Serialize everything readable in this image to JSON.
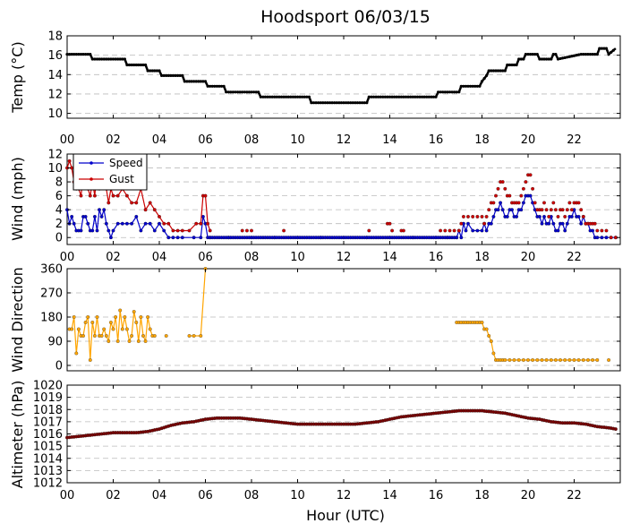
{
  "chart_data": {
    "type": "line",
    "title": "Hoodsport 06/03/15",
    "xlabel": "Hour (UTC)",
    "x_ticks": [
      "00",
      "02",
      "04",
      "06",
      "08",
      "10",
      "12",
      "14",
      "16",
      "18",
      "20",
      "22"
    ],
    "xlim": [
      0,
      24
    ],
    "panels": [
      {
        "id": "temp",
        "ylabel": "Temp ($^\\circ$C)",
        "ylabel_display": "Temp (°C)",
        "ylim": [
          9.5,
          18
        ],
        "yticks": [
          10,
          12,
          14,
          16,
          18
        ],
        "grid": true,
        "series": [
          {
            "color": "#000000",
            "x": [
              0,
              1,
              1.1,
              2.5,
              2.6,
              3.4,
              3.5,
              4,
              4.1,
              5,
              5.1,
              6,
              6.1,
              6.8,
              6.9,
              8.3,
              8.4,
              10.5,
              10.6,
              13,
              13.1,
              16,
              16.1,
              17,
              17.1,
              17.9,
              18,
              18.2,
              18.3,
              19,
              19.1,
              19.5,
              19.6,
              19.8,
              19.9,
              20.4,
              20.5,
              21,
              21.1,
              21.2,
              21.3,
              22.3,
              22.4,
              23,
              23.1,
              23.4,
              23.5,
              23.8
            ],
            "values": [
              16.1,
              16.1,
              15.6,
              15.6,
              15.0,
              15.0,
              14.4,
              14.4,
              13.9,
              13.9,
              13.3,
              13.3,
              12.8,
              12.8,
              12.2,
              12.2,
              11.7,
              11.7,
              11.1,
              11.1,
              11.7,
              11.7,
              12.2,
              12.2,
              12.8,
              12.8,
              13.3,
              13.9,
              14.4,
              14.4,
              15.0,
              15.0,
              15.6,
              15.6,
              16.1,
              16.1,
              15.6,
              15.6,
              16.1,
              16.1,
              15.6,
              16.1,
              16.1,
              16.1,
              16.7,
              16.7,
              16.1,
              16.7
            ]
          }
        ]
      },
      {
        "id": "wind",
        "ylabel": "Wind (mph)",
        "ylim": [
          -1,
          12
        ],
        "yticks": [
          0,
          2,
          4,
          6,
          8,
          10,
          12
        ],
        "grid": true,
        "legend": "top-left",
        "series": [
          {
            "name": "Speed",
            "color": "#0000cc",
            "x": [
              0,
              0.1,
              0.2,
              0.3,
              0.4,
              0.5,
              0.6,
              0.7,
              0.8,
              0.9,
              1.0,
              1.1,
              1.2,
              1.3,
              1.4,
              1.5,
              1.6,
              1.7,
              1.8,
              1.9,
              2.0,
              2.2,
              2.4,
              2.6,
              2.8,
              3.0,
              3.2,
              3.4,
              3.6,
              3.8,
              4.0,
              4.2,
              4.4,
              4.6,
              4.8,
              5.0,
              5.5,
              5.8,
              5.9,
              6.0,
              6.1,
              6.2,
              7,
              8,
              9,
              10,
              11,
              12,
              13,
              14,
              15,
              16,
              16.5,
              16.9,
              17.0,
              17.1,
              17.2,
              17.3,
              17.4,
              17.6,
              17.8,
              18.0,
              18.1,
              18.2,
              18.3,
              18.4,
              18.5,
              18.6,
              18.7,
              18.8,
              18.9,
              19.0,
              19.1,
              19.2,
              19.3,
              19.4,
              19.5,
              19.6,
              19.7,
              19.8,
              19.9,
              20.0,
              20.1,
              20.2,
              20.3,
              20.4,
              20.5,
              20.6,
              20.7,
              20.8,
              20.9,
              21.0,
              21.1,
              21.2,
              21.3,
              21.4,
              21.5,
              21.6,
              21.7,
              21.8,
              21.9,
              22.0,
              22.1,
              22.2,
              22.3,
              22.4,
              22.5,
              22.6,
              22.7,
              22.8,
              22.9,
              23.0,
              23.2,
              23.4,
              23.6,
              23.8
            ],
            "values": [
              4,
              2,
              3,
              2,
              1,
              1,
              1,
              3,
              3,
              2,
              1,
              1,
              3,
              1,
              4,
              3,
              4,
              2,
              1,
              0,
              1,
              2,
              2,
              2,
              2,
              3,
              1,
              2,
              2,
              1,
              2,
              1,
              0,
              0,
              0,
              0,
              0,
              0,
              3,
              2,
              0,
              0,
              0,
              0,
              0,
              0,
              0,
              0,
              0,
              0,
              0,
              0,
              0,
              0,
              1,
              0,
              2,
              1,
              2,
              1,
              1,
              1,
              2,
              1,
              2,
              2,
              3,
              4,
              4,
              5,
              4,
              3,
              3,
              4,
              4,
              3,
              3,
              4,
              4,
              5,
              6,
              6,
              6,
              5,
              4,
              3,
              3,
              2,
              3,
              2,
              2,
              3,
              2,
              1,
              1,
              2,
              2,
              1,
              2,
              3,
              3,
              4,
              3,
              3,
              2,
              3,
              2,
              2,
              1,
              1,
              0,
              0,
              0,
              0,
              0,
              0
            ]
          },
          {
            "name": "Gust",
            "color": "#cc0000",
            "x": [
              0,
              0.1,
              0.2,
              0.3,
              0.4,
              0.5,
              0.6,
              0.7,
              0.8,
              0.9,
              1.0,
              1.1,
              1.2,
              1.3,
              1.4,
              1.5,
              1.6,
              1.7,
              1.8,
              1.9,
              2.0,
              2.2,
              2.4,
              2.6,
              2.8,
              3.0,
              3.2,
              3.4,
              3.6,
              3.8,
              4.0,
              4.2,
              4.4,
              4.6,
              4.8,
              5.0,
              5.3,
              5.6,
              5.8,
              5.9,
              6.0,
              6.1,
              6.2
            ],
            "values": [
              10,
              11,
              10,
              8,
              7,
              7,
              6,
              9,
              8,
              7,
              6,
              8,
              6,
              10,
              7,
              8,
              9,
              7,
              5,
              7,
              6,
              6,
              7,
              6,
              5,
              5,
              7,
              4,
              5,
              4,
              3,
              2,
              2,
              1,
              1,
              1,
              1,
              2,
              2,
              6,
              6,
              2,
              1
            ],
            "x2": [
              7.6,
              7.8,
              8.0,
              9.4,
              13.1,
              13.9,
              14.0,
              14.1,
              14.5,
              14.6,
              16.2,
              16.4,
              16.6,
              16.8,
              17.0,
              17.1,
              17.2,
              17.4,
              17.6,
              17.8,
              18.0,
              18.1,
              18.2,
              18.3,
              18.4,
              18.5,
              18.6,
              18.7,
              18.8,
              18.9,
              19.0,
              19.1,
              19.2,
              19.3,
              19.4,
              19.5,
              19.6,
              19.7,
              19.8,
              19.9,
              20.0,
              20.1,
              20.2,
              20.3,
              20.4,
              20.5,
              20.6,
              20.7,
              20.8,
              20.9,
              21.0,
              21.1,
              21.2,
              21.3,
              21.4,
              21.5,
              21.6,
              21.7,
              21.8,
              21.9,
              22.0,
              22.1,
              22.2,
              22.3,
              22.4,
              22.5,
              22.6,
              22.7,
              22.8,
              22.9,
              23.0,
              23.2,
              23.4,
              23.6,
              23.8
            ],
            "values2": [
              1,
              1,
              1,
              1,
              1,
              2,
              2,
              1,
              1,
              1,
              1,
              1,
              1,
              1,
              1,
              2,
              3,
              3,
              3,
              3,
              3,
              2,
              3,
              4,
              5,
              5,
              6,
              7,
              8,
              8,
              7,
              6,
              6,
              5,
              5,
              5,
              5,
              6,
              7,
              8,
              9,
              9,
              7,
              5,
              4,
              4,
              4,
              5,
              4,
              3,
              4,
              5,
              4,
              3,
              4,
              4,
              3,
              4,
              5,
              4,
              5,
              5,
              5,
              4,
              3,
              2,
              2,
              2,
              2,
              2,
              1,
              1,
              1,
              0,
              0
            ]
          }
        ]
      },
      {
        "id": "dir",
        "ylabel": "Wind Direction",
        "ylim": [
          -20,
          360
        ],
        "yticks": [
          0,
          90,
          180,
          270,
          360
        ],
        "grid": true,
        "series": [
          {
            "color": "#ffa500",
            "segments": [
              {
                "x": [
                  0.1,
                  0.2,
                  0.3,
                  0.4,
                  0.5,
                  0.6,
                  0.7,
                  0.8,
                  0.9,
                  1.0,
                  1.1,
                  1.2,
                  1.3,
                  1.4,
                  1.5,
                  1.6,
                  1.7,
                  1.8,
                  1.9,
                  2.0,
                  2.1,
                  2.2,
                  2.3,
                  2.4,
                  2.5,
                  2.6,
                  2.7,
                  2.8,
                  2.9,
                  3.0,
                  3.1,
                  3.2,
                  3.3,
                  3.4,
                  3.5,
                  3.6,
                  3.7,
                  3.8
                ],
                "values": [
                  135,
                  135,
                  180,
                  45,
                  135,
                  110,
                  110,
                  160,
                  180,
                  20,
                  160,
                  110,
                  180,
                  110,
                  110,
                  135,
                  110,
                  90,
                  160,
                  135,
                  180,
                  90,
                  205,
                  135,
                  180,
                  135,
                  90,
                  110,
                  200,
                  160,
                  90,
                  180,
                  110,
                  90,
                  180,
                  135,
                  110,
                  110
                ]
              },
              {
                "x": [
                  4.3
                ],
                "values": [
                  110
                ]
              },
              {
                "x": [
                  5.3,
                  5.5,
                  5.8,
                  6.0
                ],
                "values": [
                  110,
                  110,
                  110,
                  360
                ]
              },
              {
                "x": [
                  16.9,
                  17.0,
                  17.1,
                  17.2,
                  17.3,
                  17.4,
                  17.5,
                  17.6,
                  17.7,
                  17.8,
                  17.9,
                  18.0,
                  18.1,
                  18.2,
                  18.3,
                  18.4,
                  18.5,
                  18.6,
                  18.7,
                  18.8,
                  18.9,
                  19.0,
                  19.2,
                  19.4,
                  19.6,
                  19.8,
                  20.0,
                  20.2,
                  20.4,
                  20.6,
                  20.8,
                  21.0,
                  21.2,
                  21.4,
                  21.6,
                  21.8,
                  22.0,
                  22.2,
                  22.4,
                  22.6,
                  22.8,
                  23.0
                ],
                "values": [
                  160,
                  160,
                  160,
                  160,
                  160,
                  160,
                  160,
                  160,
                  160,
                  160,
                  160,
                  160,
                  135,
                  135,
                  110,
                  90,
                  45,
                  20,
                  20,
                  20,
                  20,
                  20,
                  20,
                  20,
                  20,
                  20,
                  20,
                  20,
                  20,
                  20,
                  20,
                  20,
                  20,
                  20,
                  20,
                  20,
                  20,
                  20,
                  20,
                  20,
                  20,
                  20
                ]
              },
              {
                "x": [
                  23.5
                ],
                "values": [
                  20
                ]
              }
            ]
          }
        ]
      },
      {
        "id": "alt",
        "ylabel": "Altimeter (hPa)",
        "ylim": [
          1012,
          1020
        ],
        "yticks": [
          1012,
          1013,
          1014,
          1015,
          1016,
          1017,
          1018,
          1019,
          1020
        ],
        "grid": true,
        "series": [
          {
            "color": "#7b0000",
            "x": [
              0,
              0.5,
              1,
              1.5,
              2,
              2.5,
              3,
              3.5,
              4,
              4.5,
              5,
              5.5,
              6,
              6.5,
              7,
              7.5,
              8,
              8.5,
              9,
              9.5,
              10,
              10.5,
              11,
              11.5,
              12,
              12.5,
              13,
              13.5,
              14,
              14.5,
              15,
              15.5,
              16,
              16.5,
              17,
              17.5,
              18,
              18.5,
              19,
              19.5,
              20,
              20.5,
              21,
              21.5,
              22,
              22.5,
              23,
              23.5,
              23.8
            ],
            "values": [
              1015.7,
              1015.8,
              1015.9,
              1016.0,
              1016.1,
              1016.1,
              1016.1,
              1016.2,
              1016.4,
              1016.7,
              1016.9,
              1017.0,
              1017.2,
              1017.3,
              1017.3,
              1017.3,
              1017.2,
              1017.1,
              1017.0,
              1016.9,
              1016.8,
              1016.8,
              1016.8,
              1016.8,
              1016.8,
              1016.8,
              1016.9,
              1017.0,
              1017.2,
              1017.4,
              1017.5,
              1017.6,
              1017.7,
              1017.8,
              1017.9,
              1017.9,
              1017.9,
              1017.8,
              1017.7,
              1017.5,
              1017.3,
              1017.2,
              1017.0,
              1016.9,
              1016.9,
              1016.8,
              1016.6,
              1016.5,
              1016.4
            ]
          }
        ]
      }
    ]
  }
}
